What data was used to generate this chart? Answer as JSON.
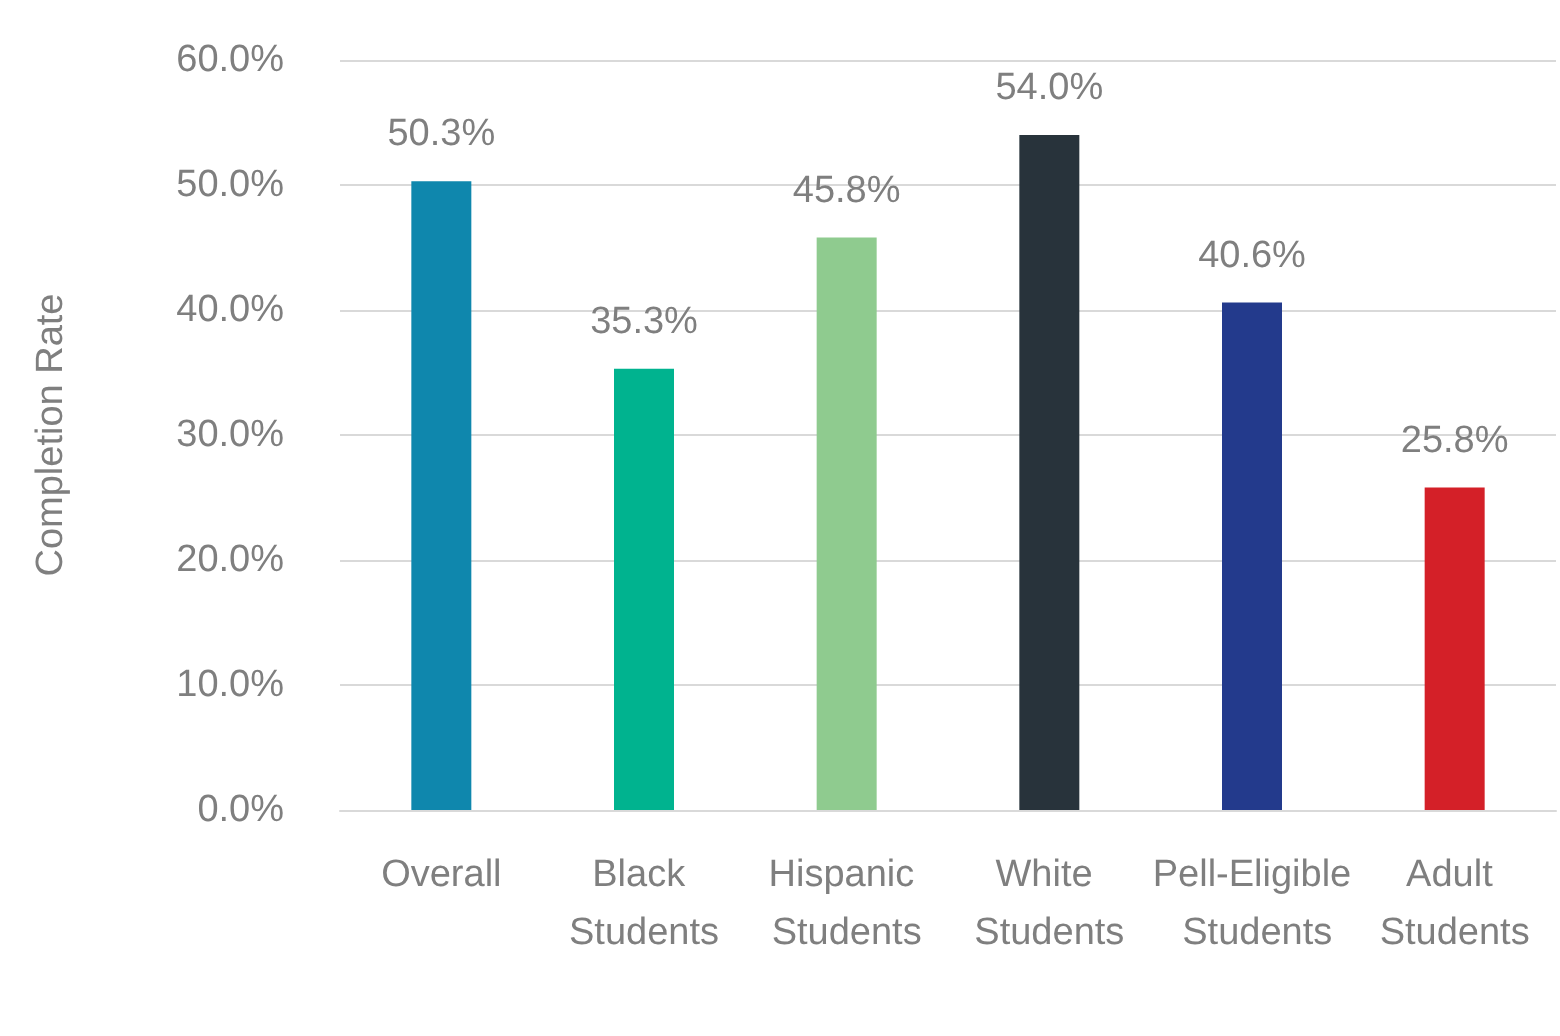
{
  "chart_data": {
    "type": "bar",
    "ylabel": "Completion Rate",
    "categories": [
      "Overall",
      "Black Students",
      "Hispanic Students",
      "White Students",
      "Pell-Eligible Students",
      "Adult Students"
    ],
    "values": [
      50.3,
      35.3,
      45.8,
      54.0,
      40.6,
      25.8
    ],
    "value_labels": [
      "50.3%",
      "35.3%",
      "45.8%",
      "54.0%",
      "40.6%",
      "25.8%"
    ],
    "colors": [
      "#0f87ad",
      "#00b38f",
      "#8fcb8f",
      "#28333b",
      "#233a8c",
      "#d42028"
    ],
    "ylim": [
      0,
      60
    ],
    "yticks": [
      {
        "value": 0,
        "label": "0.0%"
      },
      {
        "value": 10,
        "label": "10.0%"
      },
      {
        "value": 20,
        "label": "20.0%"
      },
      {
        "value": 30,
        "label": "30.0%"
      },
      {
        "value": 40,
        "label": "40.0%"
      },
      {
        "value": 50,
        "label": "50.0%"
      },
      {
        "value": 60,
        "label": "60.0%"
      }
    ],
    "grid": "y"
  }
}
